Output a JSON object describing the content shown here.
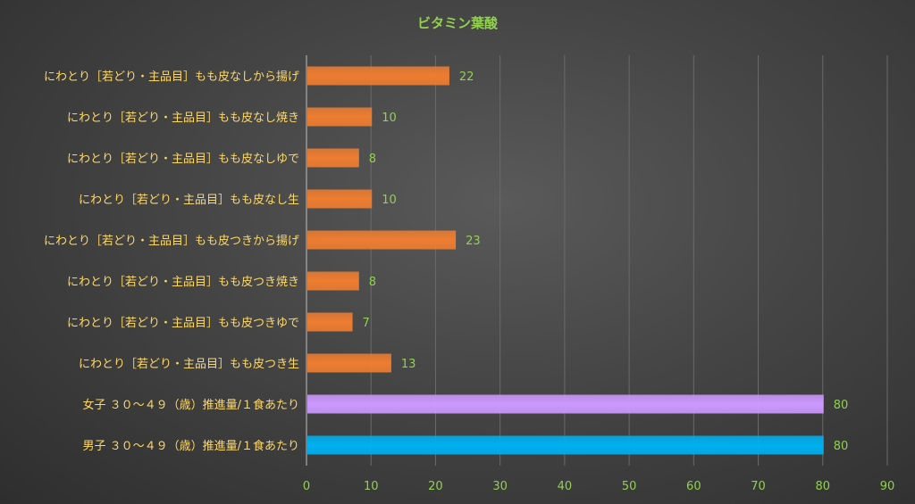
{
  "chart_data": {
    "type": "bar",
    "orientation": "horizontal",
    "title": "ビタミン葉酸",
    "xlabel": "",
    "ylabel": "",
    "xlim": [
      0,
      90
    ],
    "xticks": [
      0,
      10,
      20,
      30,
      40,
      50,
      60,
      70,
      80,
      90
    ],
    "grid": true,
    "legend": "none",
    "categories": [
      "にわとり［若どり・主品目］もも皮なしから揚げ",
      "にわとり［若どり・主品目］もも皮なし焼き",
      "にわとり［若どり・主品目］もも皮なしゆで",
      "にわとり［若どり・主品目］もも皮なし生",
      "にわとり［若どり・主品目］もも皮つきから揚げ",
      "にわとり［若どり・主品目］もも皮つき焼き",
      "にわとり［若どり・主品目］もも皮つきゆで",
      "にわとり［若どり・主品目］もも皮つき生",
      "女子 ３０～４９（歳）推進量/１食あたり",
      "男子 ３０～４９（歳）推進量/１食あたり"
    ],
    "values": [
      22,
      10,
      8,
      10,
      23,
      8,
      7,
      13,
      80,
      80
    ],
    "colors": [
      "#ed7d31",
      "#ed7d31",
      "#ed7d31",
      "#ed7d31",
      "#ed7d31",
      "#ed7d31",
      "#ed7d31",
      "#ed7d31",
      "#cc99ff",
      "#00b0f0"
    ],
    "data_labels": [
      "22",
      "10",
      "8",
      "10",
      "23",
      "8",
      "7",
      "13",
      "80",
      "80"
    ]
  }
}
